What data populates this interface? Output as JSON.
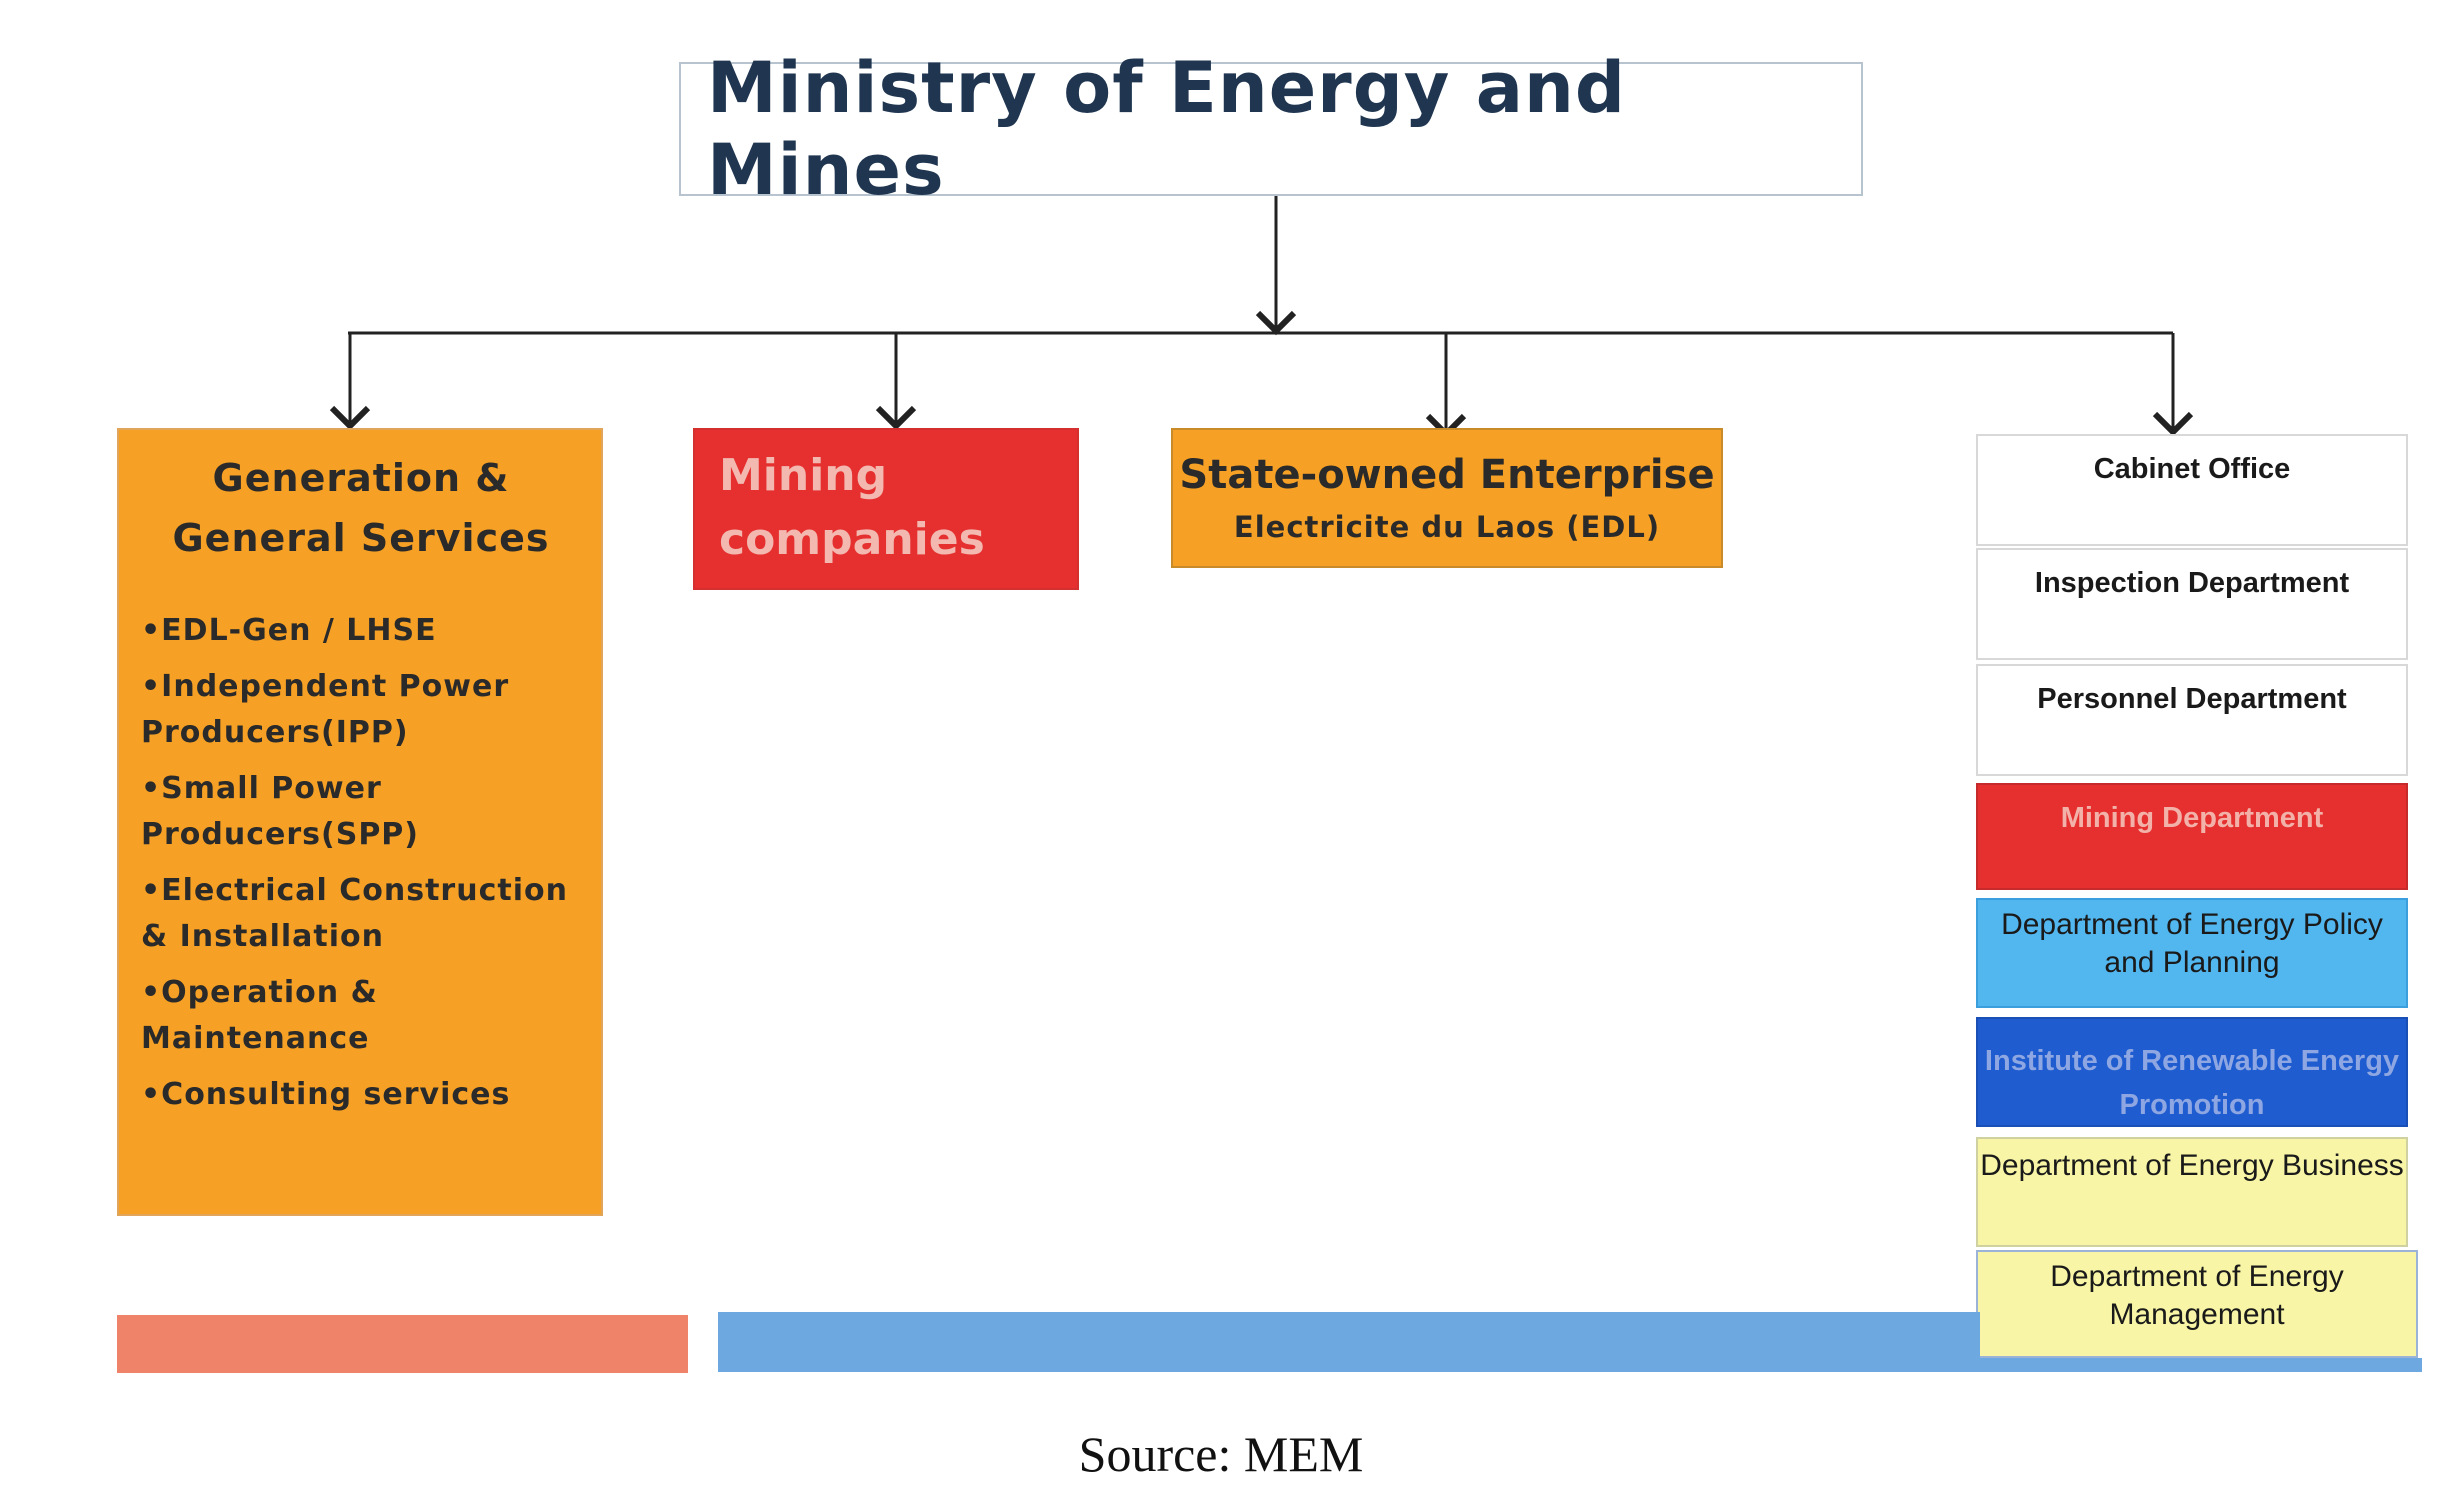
{
  "title": "Ministry of Energy and Mines",
  "generation": {
    "title_line1": "Generation &",
    "title_line2": "General Services",
    "items": [
      "•EDL-Gen / LHSE",
      "•Independent Power Producers(IPP)",
      "•Small Power Producers(SPP)",
      "•Electrical Construction & Installation",
      "•Operation & Maintenance",
      "•Consulting services"
    ]
  },
  "mining_companies": {
    "label": "Mining companies"
  },
  "state_owned": {
    "title": "State-owned Enterprise",
    "subtitle": "Electricite du Laos (EDL)"
  },
  "departments": [
    {
      "label": "Cabinet Office"
    },
    {
      "label": "Inspection Department"
    },
    {
      "label": "Personnel Department"
    },
    {
      "label": "Mining Department"
    },
    {
      "label": "Department of Energy Policy and Planning"
    },
    {
      "label": "Institute of Renewable Energy Promotion"
    },
    {
      "label": "Department of Energy Business"
    },
    {
      "label": "Department  of Energy Management"
    }
  ],
  "colors": {
    "orange": "#f6a125",
    "red": "#e5302f",
    "light_blue": "#52b6ef",
    "dark_blue": "#1f5ccf",
    "yellow": "#f8f6a6",
    "bar_salmon": "#ee836a",
    "bar_blue": "#6ea8e0"
  },
  "source": "Source: MEM"
}
